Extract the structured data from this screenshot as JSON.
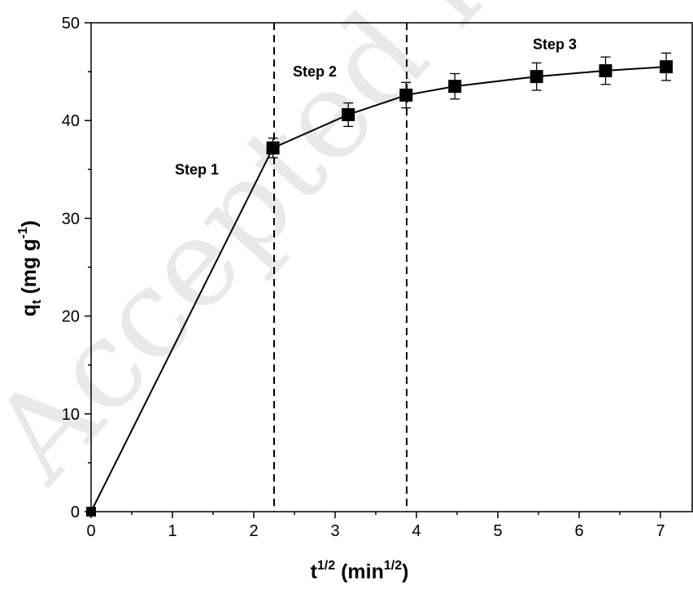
{
  "chart_data": {
    "type": "scatter",
    "title": "",
    "watermark": "Accepted manuscript",
    "x_axis": {
      "label_main": "t",
      "label_sup": "1/2",
      "label_unit_open": " (min",
      "label_unit_sup": "1/2",
      "label_unit_close": ")",
      "range": [
        0,
        7.4
      ],
      "ticks": [
        0,
        1,
        2,
        3,
        4,
        5,
        6,
        7
      ],
      "tick_labels": [
        "0",
        "1",
        "2",
        "3",
        "4",
        "5",
        "6",
        "7"
      ]
    },
    "y_axis": {
      "label_main": "q",
      "label_sub": "t",
      "label_unit_open": " (mg g",
      "label_unit_sup": "-1",
      "label_unit_close": ")",
      "range": [
        0,
        50
      ],
      "ticks": [
        0,
        10,
        20,
        30,
        40,
        50
      ],
      "tick_labels": [
        "0",
        "10",
        "20",
        "30",
        "40",
        "50"
      ]
    },
    "grid": false,
    "legend": "none",
    "series": [
      {
        "marker": "square",
        "color": "#000000",
        "points": [
          {
            "x": 0,
            "y": 0,
            "err": 0
          },
          {
            "x": 2.236,
            "y": 37.2,
            "err": 1.0
          },
          {
            "x": 3.162,
            "y": 40.6,
            "err": 1.2
          },
          {
            "x": 3.873,
            "y": 42.6,
            "err": 1.3
          },
          {
            "x": 4.472,
            "y": 43.5,
            "err": 1.3
          },
          {
            "x": 5.477,
            "y": 44.5,
            "err": 1.4
          },
          {
            "x": 6.325,
            "y": 45.1,
            "err": 1.4
          },
          {
            "x": 7.071,
            "y": 45.5,
            "err": 1.4
          }
        ]
      }
    ],
    "vertical_lines": [
      {
        "x": 2.25,
        "style": "dashed"
      },
      {
        "x": 3.88,
        "style": "dashed"
      }
    ],
    "annotations": [
      {
        "text": "Step 1",
        "x": 1.3,
        "y": 34.5
      },
      {
        "text": "Step 2",
        "x": 2.75,
        "y": 44.5
      },
      {
        "text": "Step 3",
        "x": 5.7,
        "y": 47.3
      }
    ]
  }
}
